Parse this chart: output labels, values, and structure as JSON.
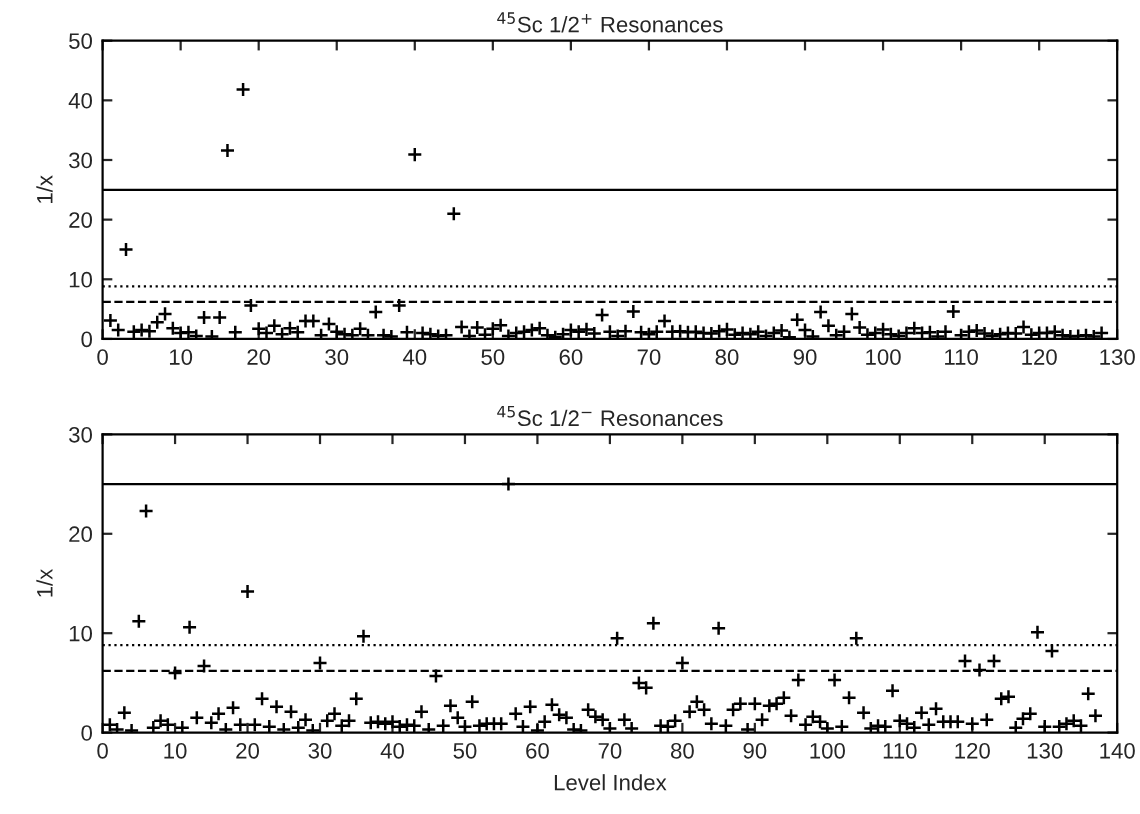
{
  "chart_data": [
    {
      "type": "scatter",
      "title": "$^{45}$Sc 1/2$^{+}$ Resonances",
      "ylabel": "1/x",
      "marker": "cross",
      "grid": false,
      "legend": false,
      "xlim": [
        0,
        130
      ],
      "xticks": [
        0,
        10,
        20,
        30,
        40,
        50,
        60,
        70,
        80,
        90,
        100,
        110,
        120,
        130
      ],
      "ylim": [
        0,
        50
      ],
      "yticks": [
        0,
        10,
        20,
        30,
        40,
        50
      ],
      "ref_lines": [
        {
          "axis": "y",
          "value": 25,
          "line_style": "solid",
          "color": "#000000"
        },
        {
          "axis": "y",
          "value": 8.8,
          "line_style": "dotted",
          "color": "#000000"
        },
        {
          "axis": "y",
          "value": 6.2,
          "line_style": "dashed",
          "color": "#000000"
        }
      ],
      "series": [
        {
          "color": "#000000",
          "x": [
            1,
            2,
            3,
            4,
            5,
            6,
            7,
            8,
            9,
            10,
            11,
            12,
            13,
            14,
            15,
            16,
            17,
            18,
            19,
            20,
            21,
            22,
            23,
            24,
            25,
            26,
            27,
            28,
            29,
            30,
            31,
            32,
            33,
            34,
            35,
            36,
            37,
            38,
            39,
            40,
            41,
            42,
            43,
            44,
            45,
            46,
            47,
            48,
            49,
            50,
            51,
            52,
            53,
            54,
            55,
            56,
            57,
            58,
            59,
            60,
            61,
            62,
            63,
            64,
            65,
            66,
            67,
            68,
            69,
            70,
            71,
            72,
            73,
            74,
            75,
            76,
            77,
            78,
            79,
            80,
            81,
            82,
            83,
            84,
            85,
            86,
            87,
            88,
            89,
            90,
            91,
            92,
            93,
            94,
            95,
            96,
            97,
            98,
            99,
            100,
            101,
            102,
            103,
            104,
            105,
            106,
            107,
            108,
            109,
            110,
            111,
            112,
            113,
            114,
            115,
            116,
            117,
            118,
            119,
            120,
            121,
            122,
            123,
            124,
            125,
            126,
            127,
            128
          ],
          "values": [
            3.1,
            1.5,
            15,
            1.2,
            1.5,
            1.3,
            2.8,
            4.2,
            1.8,
            1.0,
            1.1,
            0.5,
            3.6,
            0.4,
            3.6,
            31.6,
            1.1,
            41.8,
            5.6,
            1.7,
            1.0,
            2.2,
            0.8,
            1.8,
            1.1,
            3.0,
            3.0,
            0.6,
            2.5,
            1.2,
            0.8,
            0.6,
            1.7,
            0.6,
            4.5,
            0.6,
            0.4,
            5.6,
            1.1,
            30.9,
            1.0,
            0.8,
            0.5,
            0.6,
            21,
            2.0,
            0.5,
            1.9,
            0.7,
            1.7,
            2.3,
            0.5,
            1.0,
            1.2,
            1.5,
            1.8,
            0.6,
            0.3,
            0.8,
            1.5,
            1.2,
            1.6,
            0.9,
            4.0,
            1.2,
            0.5,
            1.3,
            4.6,
            1.1,
            0.8,
            1.2,
            3.0,
            1.2,
            1.3,
            1.1,
            1.2,
            1.0,
            0.9,
            1.3,
            1.6,
            0.7,
            1.0,
            0.8,
            1.2,
            0.5,
            1.0,
            1.4,
            0.3,
            3.2,
            1.5,
            0.4,
            4.5,
            2.2,
            0.6,
            1.2,
            4.2,
            1.9,
            0.7,
            1.0,
            1.6,
            0.8,
            0.5,
            1.0,
            1.8,
            1.0,
            1.1,
            0.4,
            1.2,
            4.6,
            0.6,
            1.2,
            1.4,
            0.9,
            0.5,
            0.8,
            1.0,
            0.9,
            2.0,
            0.7,
            1.0,
            1.0,
            1.2,
            0.6,
            0.4,
            0.5,
            0.6,
            0.4,
            1.0
          ]
        }
      ]
    },
    {
      "type": "scatter",
      "title": "$^{45}$Sc 1/2$^{−}$ Resonances",
      "xlabel": "Level Index",
      "ylabel": "1/x",
      "marker": "cross",
      "grid": false,
      "legend": false,
      "xlim": [
        0,
        140
      ],
      "xticks": [
        0,
        10,
        20,
        30,
        40,
        50,
        60,
        70,
        80,
        90,
        100,
        110,
        120,
        130,
        140
      ],
      "ylim": [
        0,
        30
      ],
      "yticks": [
        0,
        10,
        20,
        30
      ],
      "ref_lines": [
        {
          "axis": "y",
          "value": 25,
          "line_style": "solid",
          "color": "#000000"
        },
        {
          "axis": "y",
          "value": 8.8,
          "line_style": "dotted",
          "color": "#000000"
        },
        {
          "axis": "y",
          "value": 6.2,
          "line_style": "dashed",
          "color": "#000000"
        }
      ],
      "series": [
        {
          "color": "#000000",
          "x": [
            1,
            2,
            3,
            4,
            5,
            6,
            7,
            8,
            9,
            10,
            11,
            12,
            13,
            14,
            15,
            16,
            17,
            18,
            19,
            20,
            21,
            22,
            23,
            24,
            25,
            26,
            27,
            28,
            29,
            30,
            31,
            32,
            33,
            34,
            35,
            36,
            37,
            38,
            39,
            40,
            41,
            42,
            43,
            44,
            45,
            46,
            47,
            48,
            49,
            50,
            51,
            52,
            53,
            54,
            55,
            56,
            57,
            58,
            59,
            60,
            61,
            62,
            63,
            64,
            65,
            66,
            67,
            68,
            69,
            70,
            71,
            72,
            73,
            74,
            75,
            76,
            77,
            78,
            79,
            80,
            81,
            82,
            83,
            84,
            85,
            86,
            87,
            88,
            89,
            90,
            91,
            92,
            93,
            94,
            95,
            96,
            97,
            98,
            99,
            100,
            101,
            102,
            103,
            104,
            105,
            106,
            107,
            108,
            109,
            110,
            111,
            112,
            113,
            114,
            115,
            116,
            117,
            118,
            119,
            120,
            121,
            122,
            123,
            124,
            125,
            126,
            127,
            128,
            129,
            130,
            131,
            132,
            133,
            134,
            135,
            136,
            137
          ],
          "values": [
            0.8,
            0.3,
            2.0,
            0.2,
            11.2,
            22.3,
            0.5,
            1.2,
            0.8,
            6.0,
            0.5,
            10.6,
            1.5,
            6.7,
            1.0,
            1.9,
            0.3,
            2.5,
            0.8,
            14.2,
            0.8,
            3.4,
            0.6,
            2.6,
            0.3,
            2.1,
            0.5,
            1.3,
            0.2,
            7.0,
            1.2,
            1.9,
            0.7,
            1.2,
            3.4,
            9.7,
            1.0,
            1.1,
            0.9,
            1.1,
            0.6,
            0.8,
            0.7,
            2.1,
            0.3,
            5.7,
            0.7,
            2.7,
            1.5,
            0.6,
            3.1,
            0.7,
            0.9,
            0.9,
            0.9,
            25.0,
            1.9,
            0.6,
            2.6,
            0.2,
            1.1,
            2.8,
            1.8,
            1.5,
            0.3,
            0.2,
            2.3,
            1.6,
            1.3,
            0.4,
            9.5,
            1.3,
            0.4,
            5.0,
            4.5,
            11.0,
            0.7,
            0.6,
            1.2,
            7.0,
            2.1,
            3.1,
            2.3,
            0.9,
            10.5,
            0.7,
            2.3,
            2.9,
            0.3,
            2.9,
            1.3,
            2.7,
            2.9,
            3.5,
            1.7,
            5.3,
            0.8,
            1.6,
            1.1,
            0.4,
            5.3,
            0.6,
            3.5,
            9.5,
            2.0,
            0.4,
            0.7,
            0.6,
            4.2,
            1.2,
            0.9,
            0.5,
            2.0,
            0.8,
            2.4,
            1.1,
            1.1,
            1.1,
            7.2,
            0.9,
            6.3,
            1.3,
            7.2,
            3.4,
            3.6,
            0.5,
            1.4,
            1.9,
            10.1,
            0.6,
            8.2,
            0.6,
            0.9,
            1.2,
            0.7,
            3.9,
            1.7
          ]
        }
      ]
    }
  ]
}
